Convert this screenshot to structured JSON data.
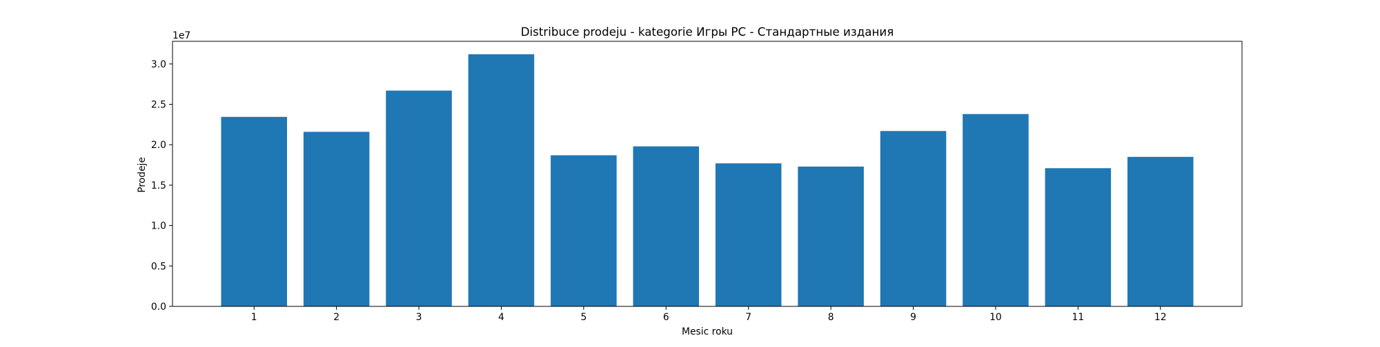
{
  "chart_data": {
    "type": "bar",
    "title": "Distribuce prodeju  - kategorie Игры PC - Стандартные издания",
    "xlabel": "Mesic roku",
    "ylabel": "Prodeje",
    "y_offset_label": "1e7",
    "categories": [
      "1",
      "2",
      "3",
      "4",
      "5",
      "6",
      "7",
      "8",
      "9",
      "10",
      "11",
      "12"
    ],
    "values": [
      23450000,
      21600000,
      26700000,
      31200000,
      18700000,
      19800000,
      17700000,
      17300000,
      21700000,
      23800000,
      17100000,
      18500000
    ],
    "ylim": [
      0,
      32800000
    ],
    "y_ticks": [
      0,
      5000000,
      10000000,
      15000000,
      20000000,
      25000000,
      30000000
    ],
    "y_tick_labels": [
      "0.0",
      "0.5",
      "1.0",
      "1.5",
      "2.0",
      "2.5",
      "3.0"
    ],
    "bar_color": "#1f77b4",
    "grid": false,
    "legend": "none"
  }
}
